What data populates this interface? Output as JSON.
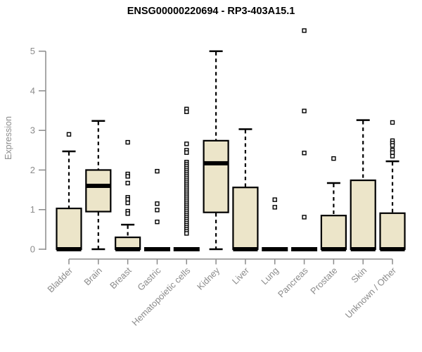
{
  "page": {
    "background": "#ffffff"
  },
  "chart_data": {
    "type": "boxplot",
    "title": "ENSG00000220694 - RP3-403A15.1",
    "ylabel": "Expression",
    "xlabel": "",
    "ylim": [
      0,
      5
    ],
    "yticks": [
      0,
      1,
      2,
      3,
      4,
      5
    ],
    "grid": false,
    "legend": "none",
    "colors": {
      "box_fill": "#ECE5C9",
      "box_stroke": "#000000",
      "axis": "#8b8b8b",
      "title_color": "#000000",
      "background": "#ffffff"
    },
    "categories": [
      "Bladder",
      "Brain",
      "Breast",
      "Gastric",
      "Hematopoietic cells",
      "Kidney",
      "Liver",
      "Lung",
      "Pancreas",
      "Prostate",
      "Skin",
      "Unknown / Other"
    ],
    "boxes": [
      {
        "category": "Bladder",
        "whisker_low": 0,
        "q1": 0,
        "median": 0,
        "q3": 1.03,
        "whisker_high": 2.47,
        "outliers": [
          2.9
        ]
      },
      {
        "category": "Brain",
        "whisker_low": 0,
        "q1": 0.95,
        "median": 1.6,
        "q3": 2.0,
        "whisker_high": 3.24,
        "outliers": []
      },
      {
        "category": "Breast",
        "whisker_low": 0,
        "q1": 0,
        "median": 0,
        "q3": 0.3,
        "whisker_high": 0.62,
        "outliers": [
          2.7,
          1.9,
          1.84,
          1.67,
          1.31,
          1.26,
          1.17,
          0.96,
          0.9
        ]
      },
      {
        "category": "Gastric",
        "whisker_low": 0,
        "q1": 0,
        "median": 0,
        "q3": 0,
        "whisker_high": 0,
        "outliers": [
          1.97,
          1.15,
          0.99,
          0.69
        ]
      },
      {
        "category": "Hematopoietic cells",
        "whisker_low": 0,
        "q1": 0,
        "median": 0,
        "q3": 0,
        "whisker_high": 0,
        "outliers": [
          3.54,
          3.47,
          2.66,
          2.5,
          2.44,
          2.2,
          2.15,
          2.1,
          2.05,
          2.0,
          1.95,
          1.9,
          1.85,
          1.8,
          1.75,
          1.7,
          1.65,
          1.6,
          1.55,
          1.5,
          1.45,
          1.4,
          1.35,
          1.3,
          1.25,
          1.2,
          1.15,
          1.1,
          1.05,
          1.0,
          0.95,
          0.9,
          0.85,
          0.8,
          0.75,
          0.7,
          0.65,
          0.6,
          0.55,
          0.5,
          0.45,
          0.4
        ]
      },
      {
        "category": "Kidney",
        "whisker_low": 0,
        "q1": 0.93,
        "median": 2.17,
        "q3": 2.74,
        "whisker_high": 5.0,
        "outliers": []
      },
      {
        "category": "Liver",
        "whisker_low": 0,
        "q1": 0,
        "median": 0,
        "q3": 1.56,
        "whisker_high": 3.03,
        "outliers": []
      },
      {
        "category": "Lung",
        "whisker_low": 0,
        "q1": 0,
        "median": 0,
        "q3": 0,
        "whisker_high": 0,
        "outliers": [
          1.25,
          1.06
        ]
      },
      {
        "category": "Pancreas",
        "whisker_low": 0,
        "q1": 0,
        "median": 0,
        "q3": 0,
        "whisker_high": 0,
        "outliers": [
          5.52,
          3.49,
          2.43,
          0.81
        ]
      },
      {
        "category": "Prostate",
        "whisker_low": 0,
        "q1": 0,
        "median": 0,
        "q3": 0.85,
        "whisker_high": 1.67,
        "outliers": [
          2.29
        ]
      },
      {
        "category": "Skin",
        "whisker_low": 0,
        "q1": 0,
        "median": 0,
        "q3": 1.74,
        "whisker_high": 3.26,
        "outliers": []
      },
      {
        "category": "Unknown / Other",
        "whisker_low": 0,
        "q1": 0,
        "median": 0,
        "q3": 0.91,
        "whisker_high": 2.22,
        "outliers": [
          3.2,
          2.74,
          2.68,
          2.62,
          2.5,
          2.44,
          2.35
        ]
      }
    ]
  }
}
